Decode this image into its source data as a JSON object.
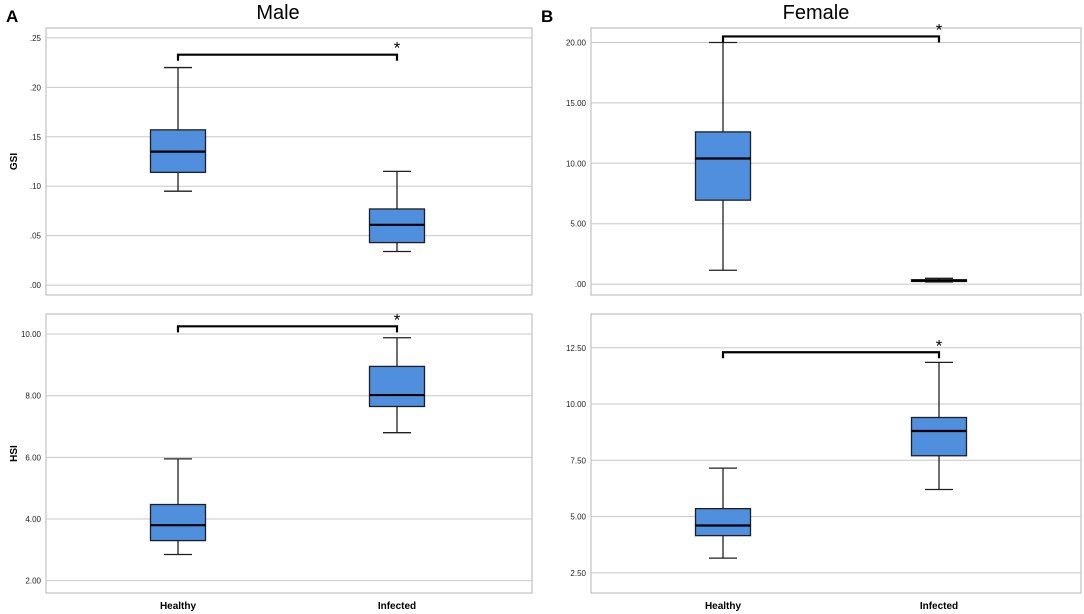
{
  "figure": {
    "panel_labels": [
      "A",
      "B"
    ],
    "column_titles": [
      "Male",
      "Female"
    ]
  },
  "colors": {
    "box_fill": "#4f8fde",
    "box_stroke": "#1f1f1f",
    "grid": "#c8c8c8",
    "frame": "#b4b4b4"
  },
  "chart_data": [
    {
      "type": "box",
      "panel": "A",
      "title": "Male",
      "ylabel": "GSI",
      "xlabel": "",
      "categories": [
        "Healthy",
        "Infected"
      ],
      "ylim": [
        -0.01,
        0.26
      ],
      "yticks": [
        0,
        0.05,
        0.1,
        0.15,
        0.2,
        0.25
      ],
      "ytick_labels": [
        ".00",
        ".05",
        ".10",
        ".15",
        ".20",
        ".25"
      ],
      "boxes": [
        {
          "category": "Healthy",
          "min": 0.095,
          "q1": 0.114,
          "median": 0.135,
          "q3": 0.157,
          "max": 0.22
        },
        {
          "category": "Infected",
          "min": 0.034,
          "q1": 0.043,
          "median": 0.061,
          "q3": 0.077,
          "max": 0.115
        }
      ],
      "significance": {
        "from": "Healthy",
        "to": "Infected",
        "y": 0.233,
        "label": "*"
      }
    },
    {
      "type": "box",
      "panel": "B",
      "title": "Female",
      "ylabel": "",
      "xlabel": "",
      "categories": [
        "Healthy",
        "Infected"
      ],
      "ylim": [
        -0.9,
        21.2
      ],
      "yticks": [
        0,
        5,
        10,
        15,
        20
      ],
      "ytick_labels": [
        ".00",
        "5.00",
        "10.00",
        "15.00",
        "20.00"
      ],
      "boxes": [
        {
          "category": "Healthy",
          "min": 1.15,
          "q1": 6.95,
          "median": 10.4,
          "q3": 12.6,
          "max": 20.0
        },
        {
          "category": "Infected",
          "min": 0.18,
          "q1": 0.22,
          "median": 0.3,
          "q3": 0.36,
          "max": 0.48
        }
      ],
      "significance": {
        "from": "Healthy",
        "to": "Infected",
        "y": 20.5,
        "label": "*"
      }
    },
    {
      "type": "box",
      "panel": "A",
      "title": "",
      "ylabel": "HSI",
      "xlabel": "",
      "categories": [
        "Healthy",
        "Infected"
      ],
      "ylim": [
        1.6,
        10.65
      ],
      "yticks": [
        2,
        4,
        6,
        8,
        10
      ],
      "ytick_labels": [
        "2.00",
        "4.00",
        "6.00",
        "8.00",
        "10.00"
      ],
      "boxes": [
        {
          "category": "Healthy",
          "min": 2.85,
          "q1": 3.3,
          "median": 3.8,
          "q3": 4.47,
          "max": 5.95
        },
        {
          "category": "Infected",
          "min": 6.8,
          "q1": 7.65,
          "median": 8.02,
          "q3": 8.95,
          "max": 9.88
        }
      ],
      "significance": {
        "from": "Healthy",
        "to": "Infected",
        "y": 10.25,
        "label": "*"
      }
    },
    {
      "type": "box",
      "panel": "B",
      "title": "",
      "ylabel": "",
      "xlabel": "",
      "categories": [
        "Healthy",
        "Infected"
      ],
      "ylim": [
        1.6,
        14.0
      ],
      "yticks": [
        2.5,
        5,
        7.5,
        10,
        12.5
      ],
      "ytick_labels": [
        "2.50",
        "5.00",
        "7.50",
        "10.00",
        "12.50"
      ],
      "boxes": [
        {
          "category": "Healthy",
          "min": 3.15,
          "q1": 4.15,
          "median": 4.6,
          "q3": 5.35,
          "max": 7.15
        },
        {
          "category": "Infected",
          "min": 6.2,
          "q1": 7.7,
          "median": 8.8,
          "q3": 9.4,
          "max": 11.85
        }
      ],
      "significance": {
        "from": "Healthy",
        "to": "Infected",
        "y": 12.3,
        "label": "*"
      }
    }
  ]
}
